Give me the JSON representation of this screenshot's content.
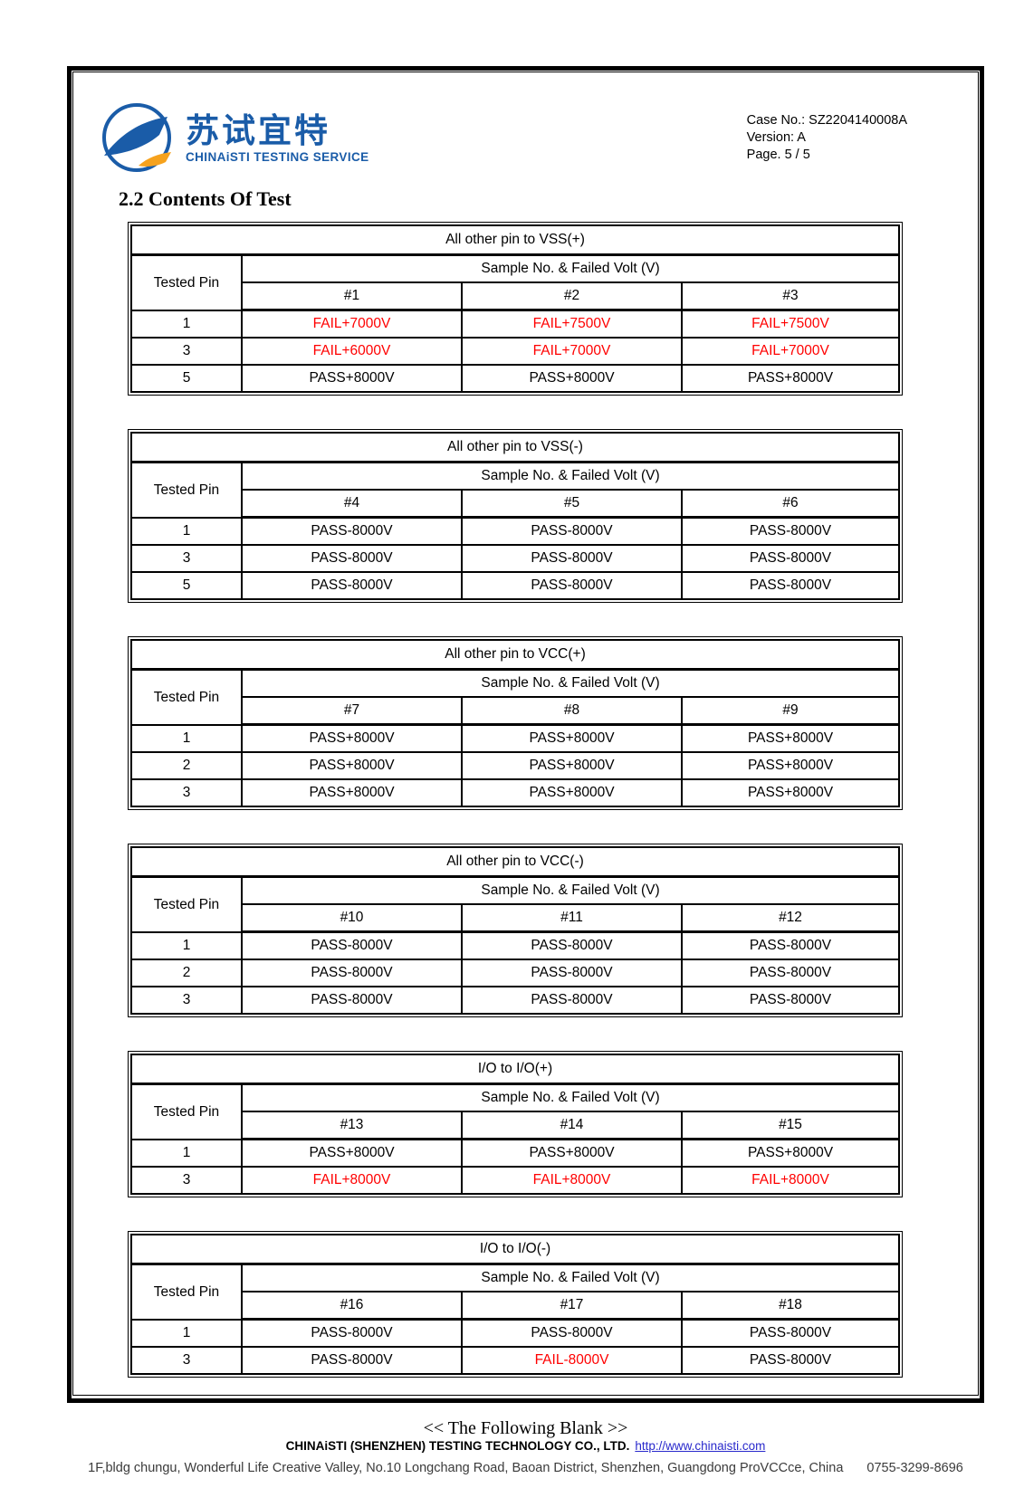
{
  "header": {
    "logo": {
      "name_cn": "苏试宜特",
      "name_en": "CHINAiSTI TESTING SERVICE"
    },
    "case_no": "Case No.: SZ2204140008A",
    "version": "Version: A",
    "page": "Page. 5 / 5"
  },
  "section_title": "2.2 Contents Of Test",
  "table_header": {
    "tested_pin": "Tested Pin",
    "sample": "Sample No. & Failed Volt (V)"
  },
  "tables": [
    {
      "title": "All other pin to VSS(+)",
      "samples": [
        "#1",
        "#2",
        "#3"
      ],
      "rows": [
        {
          "pin": "1",
          "values": [
            {
              "t": "FAIL+7000V",
              "f": true
            },
            {
              "t": "FAIL+7500V",
              "f": true
            },
            {
              "t": "FAIL+7500V",
              "f": true
            }
          ]
        },
        {
          "pin": "3",
          "values": [
            {
              "t": "FAIL+6000V",
              "f": true
            },
            {
              "t": "FAIL+7000V",
              "f": true
            },
            {
              "t": "FAIL+7000V",
              "f": true
            }
          ]
        },
        {
          "pin": "5",
          "values": [
            {
              "t": "PASS+8000V",
              "f": false
            },
            {
              "t": "PASS+8000V",
              "f": false
            },
            {
              "t": "PASS+8000V",
              "f": false
            }
          ]
        }
      ]
    },
    {
      "title": "All other pin to VSS(-)",
      "samples": [
        "#4",
        "#5",
        "#6"
      ],
      "rows": [
        {
          "pin": "1",
          "values": [
            {
              "t": "PASS-8000V",
              "f": false
            },
            {
              "t": "PASS-8000V",
              "f": false
            },
            {
              "t": "PASS-8000V",
              "f": false
            }
          ]
        },
        {
          "pin": "3",
          "values": [
            {
              "t": "PASS-8000V",
              "f": false
            },
            {
              "t": "PASS-8000V",
              "f": false
            },
            {
              "t": "PASS-8000V",
              "f": false
            }
          ]
        },
        {
          "pin": "5",
          "values": [
            {
              "t": "PASS-8000V",
              "f": false
            },
            {
              "t": "PASS-8000V",
              "f": false
            },
            {
              "t": "PASS-8000V",
              "f": false
            }
          ]
        }
      ]
    },
    {
      "title": "All other pin to VCC(+)",
      "samples": [
        "#7",
        "#8",
        "#9"
      ],
      "rows": [
        {
          "pin": "1",
          "values": [
            {
              "t": "PASS+8000V",
              "f": false
            },
            {
              "t": "PASS+8000V",
              "f": false
            },
            {
              "t": "PASS+8000V",
              "f": false
            }
          ]
        },
        {
          "pin": "2",
          "values": [
            {
              "t": "PASS+8000V",
              "f": false
            },
            {
              "t": "PASS+8000V",
              "f": false
            },
            {
              "t": "PASS+8000V",
              "f": false
            }
          ]
        },
        {
          "pin": "3",
          "values": [
            {
              "t": "PASS+8000V",
              "f": false
            },
            {
              "t": "PASS+8000V",
              "f": false
            },
            {
              "t": "PASS+8000V",
              "f": false
            }
          ]
        }
      ]
    },
    {
      "title": "All other pin to VCC(-)",
      "samples": [
        "#10",
        "#11",
        "#12"
      ],
      "rows": [
        {
          "pin": "1",
          "values": [
            {
              "t": "PASS-8000V",
              "f": false
            },
            {
              "t": "PASS-8000V",
              "f": false
            },
            {
              "t": "PASS-8000V",
              "f": false
            }
          ]
        },
        {
          "pin": "2",
          "values": [
            {
              "t": "PASS-8000V",
              "f": false
            },
            {
              "t": "PASS-8000V",
              "f": false
            },
            {
              "t": "PASS-8000V",
              "f": false
            }
          ]
        },
        {
          "pin": "3",
          "values": [
            {
              "t": "PASS-8000V",
              "f": false
            },
            {
              "t": "PASS-8000V",
              "f": false
            },
            {
              "t": "PASS-8000V",
              "f": false
            }
          ]
        }
      ]
    },
    {
      "title": "I/O to I/O(+)",
      "samples": [
        "#13",
        "#14",
        "#15"
      ],
      "rows": [
        {
          "pin": "1",
          "values": [
            {
              "t": "PASS+8000V",
              "f": false
            },
            {
              "t": "PASS+8000V",
              "f": false
            },
            {
              "t": "PASS+8000V",
              "f": false
            }
          ]
        },
        {
          "pin": "3",
          "values": [
            {
              "t": "FAIL+8000V",
              "f": true
            },
            {
              "t": "FAIL+8000V",
              "f": true
            },
            {
              "t": "FAIL+8000V",
              "f": true
            }
          ]
        }
      ]
    },
    {
      "title": "I/O to I/O(-)",
      "samples": [
        "#16",
        "#17",
        "#18"
      ],
      "rows": [
        {
          "pin": "1",
          "values": [
            {
              "t": "PASS-8000V",
              "f": false
            },
            {
              "t": "PASS-8000V",
              "f": false
            },
            {
              "t": "PASS-8000V",
              "f": false
            }
          ]
        },
        {
          "pin": "3",
          "values": [
            {
              "t": "PASS-8000V",
              "f": false
            },
            {
              "t": "FAIL-8000V",
              "f": true
            },
            {
              "t": "PASS-8000V",
              "f": false
            }
          ]
        }
      ]
    }
  ],
  "closing": "<< The Following Blank >>",
  "footer": {
    "company": "CHINAiSTI (SHENZHEN) TESTING TECHNOLOGY CO., LTD.",
    "url": "http://www.chinaisti.com",
    "address": "1F,bldg chungu, Wonderful Life Creative Valley, No.10 Longchang Road, Baoan District, Shenzhen, Guangdong ProVCCce, China",
    "phone": "0755-3299-8696"
  },
  "colors": {
    "brand_blue": "#1a5ca8",
    "brand_orange": "#f6a21d",
    "fail_red": "#ff0000",
    "link_blue": "#2929cc"
  }
}
